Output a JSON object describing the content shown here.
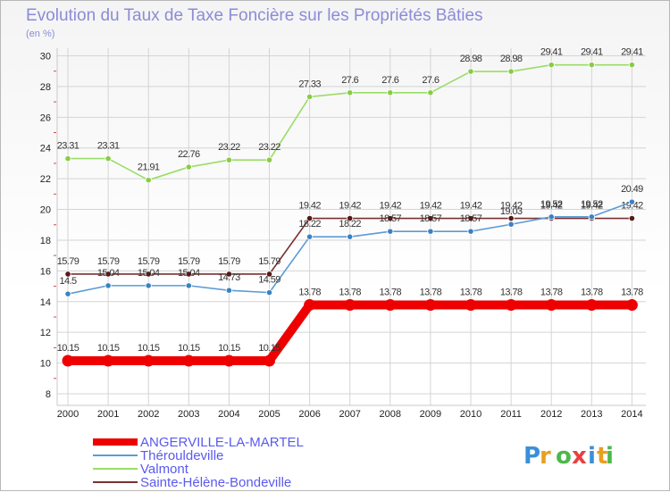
{
  "chart_data": {
    "type": "line",
    "title": "Evolution du Taux de Taxe Foncière sur les Propriétés Bâties",
    "ylabel": "(en %)",
    "xlabel": "",
    "ylim": [
      8,
      30
    ],
    "yticks": [
      8,
      10,
      12,
      14,
      16,
      18,
      20,
      22,
      24,
      26,
      28,
      30
    ],
    "x": [
      "2000",
      "2001",
      "2002",
      "2003",
      "2004",
      "2005",
      "2006",
      "2007",
      "2008",
      "2009",
      "2010",
      "2011",
      "2012",
      "2013",
      "2014"
    ],
    "grid": true,
    "legend_position": "bottom-left",
    "series": [
      {
        "name": "Valmont",
        "color": "#99dd66",
        "marker": "#88cc44",
        "values": [
          23.31,
          23.31,
          21.91,
          22.76,
          23.22,
          23.22,
          27.33,
          27.6,
          27.6,
          27.6,
          28.98,
          28.98,
          29.41,
          29.41,
          29.41
        ],
        "labels": [
          "23.31",
          "23.31",
          "21.91",
          "22.76",
          "23.22",
          "23.22",
          "27.33",
          "27.6",
          "27.6",
          "27.6",
          "28.98",
          "28.98",
          "29.41",
          "29.41",
          "29.41"
        ]
      },
      {
        "name": "Sainte-Hélène-Bondeville",
        "color": "#7a3030",
        "marker": "#5a1818",
        "values": [
          15.79,
          15.79,
          15.79,
          15.79,
          15.79,
          15.79,
          19.42,
          19.42,
          19.42,
          19.42,
          19.42,
          19.42,
          19.42,
          19.42,
          19.42
        ],
        "labels": [
          "15.79",
          "15.79",
          "15.79",
          "15.79",
          "15.79",
          "15.79",
          "19.42",
          "19.42",
          "19.42",
          "19.42",
          "19.42",
          "19.42",
          "19.42",
          "19.42",
          "19.42"
        ]
      },
      {
        "name": "Thérouldeville",
        "color": "#5b9bd5",
        "marker": "#3a82c4",
        "values": [
          14.5,
          15.04,
          15.04,
          15.04,
          14.73,
          14.59,
          18.22,
          18.22,
          18.57,
          18.57,
          18.57,
          19.03,
          19.52,
          19.52,
          20.49
        ],
        "labels": [
          "14.5",
          "15.04",
          "15.04",
          "15.04",
          "14.73",
          "14.59",
          "18.22",
          "18.22",
          "18.57",
          "18.57",
          "18.57",
          "19.03",
          "19.52",
          "19.52",
          "20.49"
        ]
      },
      {
        "name": "ANGERVILLE-LA-MARTEL",
        "color": "#ee0000",
        "marker": "#ee0000",
        "thick": true,
        "values": [
          10.15,
          10.15,
          10.15,
          10.15,
          10.15,
          10.15,
          13.78,
          13.78,
          13.78,
          13.78,
          13.78,
          13.78,
          13.78,
          13.78,
          13.78
        ],
        "labels": [
          "10.15",
          "10.15",
          "10.15",
          "10.15",
          "10.15",
          "10.15",
          "13.78",
          "13.78",
          "13.78",
          "13.78",
          "13.78",
          "13.78",
          "13.78",
          "13.78",
          "13.78"
        ]
      }
    ],
    "legend": [
      "ANGERVILLE-LA-MARTEL",
      "Thérouldeville",
      "Valmont",
      "Sainte-Hélène-Bondeville"
    ]
  },
  "brand": {
    "logo_text": "Proxiti"
  }
}
